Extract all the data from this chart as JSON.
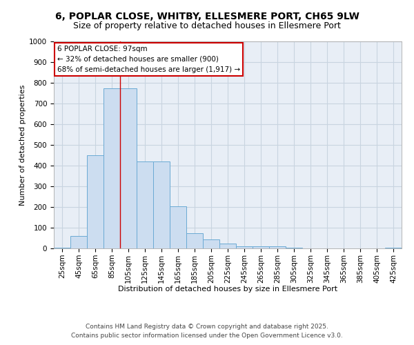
{
  "title_line1": "6, POPLAR CLOSE, WHITBY, ELLESMERE PORT, CH65 9LW",
  "title_line2": "Size of property relative to detached houses in Ellesmere Port",
  "xlabel": "Distribution of detached houses by size in Ellesmere Port",
  "ylabel": "Number of detached properties",
  "bar_color": "#ccddf0",
  "bar_edge_color": "#6aaad4",
  "background_color": "#e8eef6",
  "grid_color": "#c8d4e0",
  "annotation_line1": "6 POPLAR CLOSE: 97sqm",
  "annotation_line2": "← 32% of detached houses are smaller (900)",
  "annotation_line3": "68% of semi-detached houses are larger (1,917) →",
  "vline_x": 105,
  "bin_starts": [
    25,
    45,
    65,
    85,
    105,
    125,
    145,
    165,
    185,
    205,
    225,
    245,
    265,
    285,
    305,
    325,
    345,
    365,
    385,
    405,
    425
  ],
  "values": [
    5,
    60,
    450,
    775,
    775,
    420,
    420,
    205,
    75,
    45,
    22,
    10,
    10,
    10,
    5,
    0,
    0,
    0,
    0,
    0,
    5
  ],
  "ylim": [
    0,
    1000
  ],
  "yticks": [
    0,
    100,
    200,
    300,
    400,
    500,
    600,
    700,
    800,
    900,
    1000
  ],
  "footer_line1": "Contains HM Land Registry data © Crown copyright and database right 2025.",
  "footer_line2": "Contains public sector information licensed under the Open Government Licence v3.0.",
  "title_fontsize": 10,
  "subtitle_fontsize": 9,
  "axis_label_fontsize": 8,
  "tick_fontsize": 7.5,
  "footer_fontsize": 6.5,
  "annot_fontsize": 7.5
}
